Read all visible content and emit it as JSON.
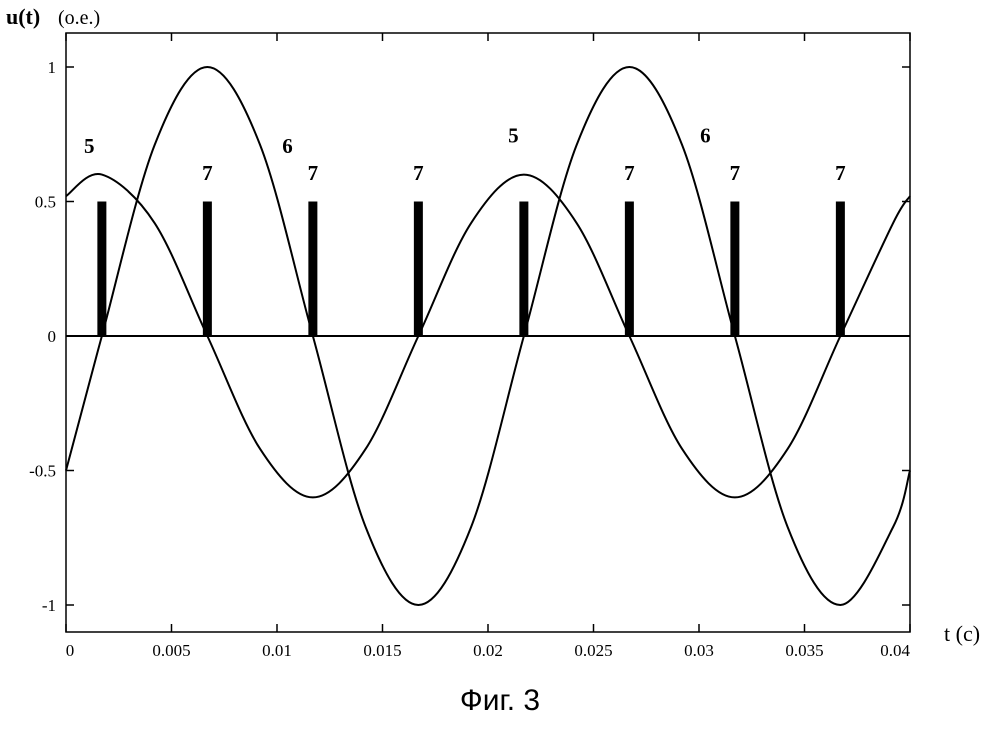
{
  "chart_data": {
    "type": "line",
    "ylabel": "u(t)",
    "ylabel_unit": "(о.е.)",
    "xlabel": "t (c)",
    "xlim": [
      0,
      0.04
    ],
    "ylim": [
      -1.05,
      1.05
    ],
    "x_ticks": [
      "0",
      "0.005",
      "0.01",
      "0.015",
      "0.02",
      "0.025",
      "0.03",
      "0.035",
      "0.04"
    ],
    "y_ticks": [
      "1",
      "0.5",
      "0",
      "-0.5",
      "-1"
    ],
    "grid": false,
    "series": [
      {
        "name": "5",
        "x": [
          0,
          0.0017,
          0.0042,
          0.0067,
          0.0092,
          0.0117,
          0.0142,
          0.0167,
          0.0192,
          0.0217,
          0.0242,
          0.0267,
          0.0292,
          0.0317,
          0.0342,
          0.0367,
          0.0392,
          0.04
        ],
        "values": [
          0.52,
          0.6,
          0.42,
          0.0,
          -0.42,
          -0.6,
          -0.42,
          0.0,
          0.42,
          0.6,
          0.42,
          0.0,
          -0.42,
          -0.6,
          -0.42,
          0.0,
          0.42,
          0.52
        ]
      },
      {
        "name": "6",
        "x": [
          0,
          0.0017,
          0.0042,
          0.0067,
          0.0092,
          0.0117,
          0.0142,
          0.0167,
          0.0192,
          0.0217,
          0.0242,
          0.0267,
          0.0292,
          0.0317,
          0.0342,
          0.0367,
          0.0392,
          0.04
        ],
        "values": [
          -0.5,
          0.0,
          0.71,
          1.0,
          0.71,
          0.0,
          -0.71,
          -1.0,
          -0.71,
          0.0,
          0.71,
          1.0,
          0.71,
          0.0,
          -0.71,
          -1.0,
          -0.71,
          -0.5
        ]
      },
      {
        "name": "7",
        "type": "impulse",
        "x": [
          0.0017,
          0.0067,
          0.0117,
          0.0167,
          0.0217,
          0.0267,
          0.0317,
          0.0367
        ],
        "values": [
          0.5,
          0.5,
          0.5,
          0.5,
          0.5,
          0.5,
          0.5,
          0.5
        ]
      }
    ],
    "annotations": [
      {
        "text": "5",
        "x": 0.0011,
        "y": 0.68
      },
      {
        "text": "6",
        "x": 0.0105,
        "y": 0.68
      },
      {
        "text": "5",
        "x": 0.0212,
        "y": 0.72
      },
      {
        "text": "6",
        "x": 0.0303,
        "y": 0.72
      },
      {
        "text": "7",
        "x": 0.0067,
        "y": 0.58
      },
      {
        "text": "7",
        "x": 0.0117,
        "y": 0.58
      },
      {
        "text": "7",
        "x": 0.0167,
        "y": 0.58
      },
      {
        "text": "7",
        "x": 0.0267,
        "y": 0.58
      },
      {
        "text": "7",
        "x": 0.0317,
        "y": 0.58
      },
      {
        "text": "7",
        "x": 0.0367,
        "y": 0.58
      }
    ]
  },
  "caption": "Фиг. 3"
}
